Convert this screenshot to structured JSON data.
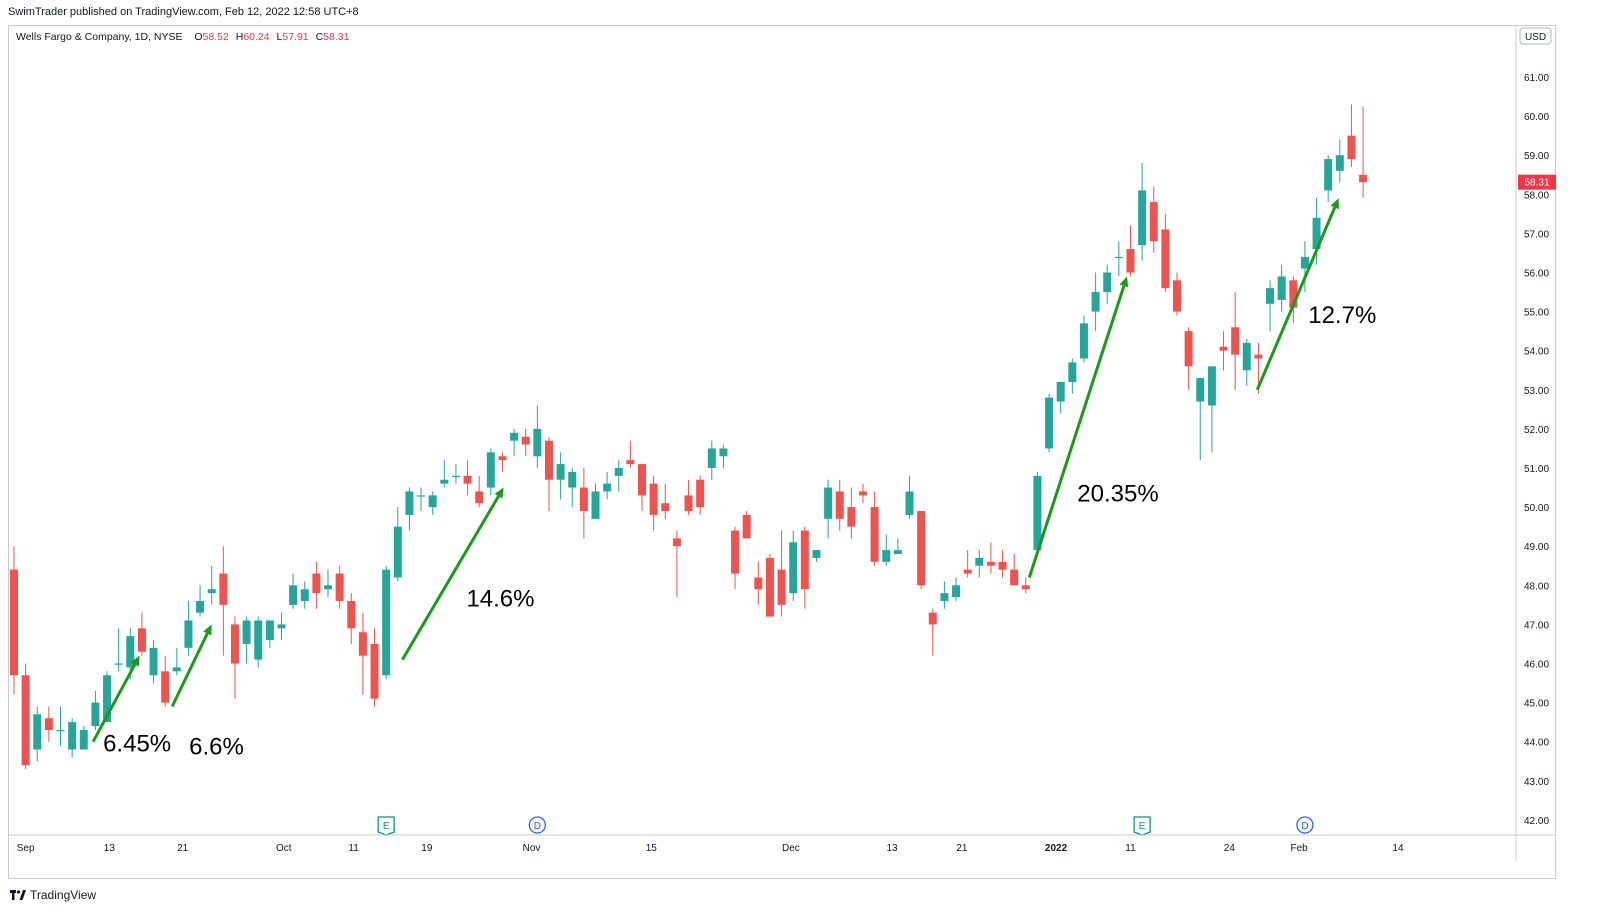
{
  "header": {
    "published_text": "SwimTrader published on TradingView.com, Feb 12, 2022 12:58 UTC+8"
  },
  "legend": {
    "symbol_text": "Wells Fargo & Company, 1D, NYSE",
    "open_label": "O",
    "open_value": "58.52",
    "high_label": "H",
    "high_value": "60.24",
    "low_label": "L",
    "low_value": "57.91",
    "close_label": "C",
    "close_value": "58.31"
  },
  "currency_badge": "USD",
  "last_price_badge": "58.31",
  "brand_label": "TradingView",
  "colors": {
    "up": "#26a69a",
    "down": "#ef5350",
    "arrow": "#1a9a1a",
    "last_price": "#f23645",
    "earnings_marker": "#089981",
    "dividend_marker": "#2962ff"
  },
  "chart_data": {
    "type": "candlestick",
    "title": "",
    "y_axis_ticks": [
      "42.00",
      "43.00",
      "44.00",
      "45.00",
      "46.00",
      "47.00",
      "48.00",
      "49.00",
      "50.00",
      "51.00",
      "52.00",
      "53.00",
      "54.00",
      "55.00",
      "56.00",
      "57.00",
      "58.00",
      "59.00",
      "60.00",
      "61.00"
    ],
    "x_axis_ticks": [
      "Sep",
      "13",
      "21",
      "Oct",
      "11",
      "19",
      "Nov",
      "15",
      "Dec",
      "13",
      "21",
      "2022",
      "11",
      "24",
      "Feb",
      "14"
    ],
    "ylim": [
      41.6,
      61.6
    ],
    "grid": false,
    "candles": [
      {
        "o": 48.4,
        "h": 49.0,
        "l": 45.2,
        "c": 45.7
      },
      {
        "o": 45.7,
        "h": 46.0,
        "l": 43.3,
        "c": 43.4
      },
      {
        "o": 43.8,
        "h": 44.9,
        "l": 43.5,
        "c": 44.7
      },
      {
        "o": 44.6,
        "h": 44.9,
        "l": 44.0,
        "c": 44.3
      },
      {
        "o": 44.3,
        "h": 44.9,
        "l": 43.9,
        "c": 44.3
      },
      {
        "o": 43.8,
        "h": 44.6,
        "l": 43.6,
        "c": 44.5
      },
      {
        "o": 43.8,
        "h": 44.4,
        "l": 43.8,
        "c": 44.3
      },
      {
        "o": 44.4,
        "h": 45.3,
        "l": 44.3,
        "c": 45.0
      },
      {
        "o": 44.5,
        "h": 45.8,
        "l": 44.5,
        "c": 45.7
      },
      {
        "o": 46.0,
        "h": 46.9,
        "l": 45.8,
        "c": 46.0
      },
      {
        "o": 45.9,
        "h": 46.9,
        "l": 45.6,
        "c": 46.7
      },
      {
        "o": 46.9,
        "h": 47.3,
        "l": 46.2,
        "c": 46.3
      },
      {
        "o": 45.7,
        "h": 46.6,
        "l": 45.5,
        "c": 46.4
      },
      {
        "o": 45.8,
        "h": 46.2,
        "l": 44.9,
        "c": 45.0
      },
      {
        "o": 45.8,
        "h": 46.4,
        "l": 45.7,
        "c": 45.9
      },
      {
        "o": 46.4,
        "h": 47.6,
        "l": 46.2,
        "c": 47.1
      },
      {
        "o": 47.3,
        "h": 48.0,
        "l": 47.2,
        "c": 47.6
      },
      {
        "o": 47.8,
        "h": 48.5,
        "l": 47.5,
        "c": 47.9
      },
      {
        "o": 48.3,
        "h": 49.0,
        "l": 46.2,
        "c": 47.5
      },
      {
        "o": 47.0,
        "h": 47.2,
        "l": 45.1,
        "c": 46.0
      },
      {
        "o": 46.5,
        "h": 47.2,
        "l": 46.0,
        "c": 47.1
      },
      {
        "o": 46.1,
        "h": 47.2,
        "l": 45.9,
        "c": 47.1
      },
      {
        "o": 46.6,
        "h": 47.1,
        "l": 46.4,
        "c": 47.1
      },
      {
        "o": 46.9,
        "h": 47.3,
        "l": 46.6,
        "c": 47.0
      },
      {
        "o": 47.5,
        "h": 48.3,
        "l": 47.4,
        "c": 48.0
      },
      {
        "o": 47.6,
        "h": 48.1,
        "l": 47.4,
        "c": 47.9
      },
      {
        "o": 48.3,
        "h": 48.6,
        "l": 47.4,
        "c": 47.8
      },
      {
        "o": 47.9,
        "h": 48.4,
        "l": 47.7,
        "c": 48.0
      },
      {
        "o": 48.3,
        "h": 48.5,
        "l": 47.4,
        "c": 47.6
      },
      {
        "o": 47.6,
        "h": 47.8,
        "l": 46.5,
        "c": 46.9
      },
      {
        "o": 46.8,
        "h": 47.3,
        "l": 45.2,
        "c": 46.2
      },
      {
        "o": 46.5,
        "h": 46.9,
        "l": 44.9,
        "c": 45.1
      },
      {
        "o": 45.7,
        "h": 48.5,
        "l": 45.6,
        "c": 48.4
      },
      {
        "o": 48.2,
        "h": 50.0,
        "l": 48.1,
        "c": 49.5
      },
      {
        "o": 49.8,
        "h": 50.5,
        "l": 49.4,
        "c": 50.4
      },
      {
        "o": 50.3,
        "h": 50.5,
        "l": 49.9,
        "c": 50.3
      },
      {
        "o": 50.0,
        "h": 50.4,
        "l": 49.8,
        "c": 50.3
      },
      {
        "o": 50.6,
        "h": 51.2,
        "l": 50.5,
        "c": 50.7
      },
      {
        "o": 50.8,
        "h": 51.1,
        "l": 50.6,
        "c": 50.8
      },
      {
        "o": 50.8,
        "h": 51.2,
        "l": 50.3,
        "c": 50.6
      },
      {
        "o": 50.4,
        "h": 50.8,
        "l": 50.0,
        "c": 50.1
      },
      {
        "o": 50.5,
        "h": 51.5,
        "l": 50.3,
        "c": 51.4
      },
      {
        "o": 51.3,
        "h": 51.4,
        "l": 50.9,
        "c": 51.2
      },
      {
        "o": 51.7,
        "h": 52.0,
        "l": 51.3,
        "c": 51.9
      },
      {
        "o": 51.8,
        "h": 52.0,
        "l": 51.3,
        "c": 51.6
      },
      {
        "o": 51.3,
        "h": 52.6,
        "l": 51.0,
        "c": 52.0
      },
      {
        "o": 51.7,
        "h": 51.8,
        "l": 49.9,
        "c": 50.7
      },
      {
        "o": 50.7,
        "h": 51.4,
        "l": 50.2,
        "c": 51.1
      },
      {
        "o": 50.5,
        "h": 51.0,
        "l": 50.0,
        "c": 50.9
      },
      {
        "o": 50.5,
        "h": 51.0,
        "l": 49.2,
        "c": 49.9
      },
      {
        "o": 49.7,
        "h": 50.6,
        "l": 49.7,
        "c": 50.4
      },
      {
        "o": 50.4,
        "h": 50.9,
        "l": 50.2,
        "c": 50.6
      },
      {
        "o": 50.8,
        "h": 51.2,
        "l": 50.4,
        "c": 51.0
      },
      {
        "o": 51.2,
        "h": 51.7,
        "l": 51.0,
        "c": 51.1
      },
      {
        "o": 51.1,
        "h": 51.1,
        "l": 49.9,
        "c": 50.3
      },
      {
        "o": 50.6,
        "h": 50.8,
        "l": 49.4,
        "c": 49.8
      },
      {
        "o": 50.1,
        "h": 50.6,
        "l": 49.7,
        "c": 49.9
      },
      {
        "o": 49.2,
        "h": 49.4,
        "l": 47.7,
        "c": 49.0
      },
      {
        "o": 50.3,
        "h": 50.7,
        "l": 49.8,
        "c": 49.9
      },
      {
        "o": 50.7,
        "h": 50.8,
        "l": 49.8,
        "c": 50.0
      },
      {
        "o": 51.0,
        "h": 51.7,
        "l": 50.7,
        "c": 51.5
      },
      {
        "o": 51.3,
        "h": 51.6,
        "l": 51.0,
        "c": 51.5
      },
      {
        "o": 49.4,
        "h": 49.5,
        "l": 47.9,
        "c": 48.3
      },
      {
        "o": 49.8,
        "h": 49.9,
        "l": 49.2,
        "c": 49.2
      },
      {
        "o": 48.2,
        "h": 48.6,
        "l": 47.5,
        "c": 47.9
      },
      {
        "o": 48.7,
        "h": 48.8,
        "l": 47.2,
        "c": 47.2
      },
      {
        "o": 48.4,
        "h": 49.4,
        "l": 47.2,
        "c": 47.5
      },
      {
        "o": 47.8,
        "h": 49.4,
        "l": 47.6,
        "c": 49.1
      },
      {
        "o": 49.4,
        "h": 49.5,
        "l": 47.4,
        "c": 47.9
      },
      {
        "o": 48.7,
        "h": 48.9,
        "l": 48.6,
        "c": 48.9
      },
      {
        "o": 49.7,
        "h": 50.7,
        "l": 49.2,
        "c": 50.5
      },
      {
        "o": 50.4,
        "h": 50.7,
        "l": 49.4,
        "c": 49.7
      },
      {
        "o": 50.0,
        "h": 50.5,
        "l": 49.2,
        "c": 49.5
      },
      {
        "o": 50.4,
        "h": 50.6,
        "l": 50.1,
        "c": 50.3
      },
      {
        "o": 50.0,
        "h": 50.4,
        "l": 48.5,
        "c": 48.6
      },
      {
        "o": 48.6,
        "h": 49.3,
        "l": 48.5,
        "c": 48.9
      },
      {
        "o": 48.8,
        "h": 49.2,
        "l": 48.8,
        "c": 48.9
      },
      {
        "o": 49.8,
        "h": 50.8,
        "l": 49.7,
        "c": 50.4
      },
      {
        "o": 49.9,
        "h": 49.9,
        "l": 47.9,
        "c": 48.0
      },
      {
        "o": 47.3,
        "h": 47.4,
        "l": 46.2,
        "c": 47.0
      },
      {
        "o": 47.6,
        "h": 48.1,
        "l": 47.4,
        "c": 47.8
      },
      {
        "o": 47.7,
        "h": 48.2,
        "l": 47.6,
        "c": 48.0
      },
      {
        "o": 48.4,
        "h": 48.9,
        "l": 48.2,
        "c": 48.3
      },
      {
        "o": 48.5,
        "h": 48.9,
        "l": 48.2,
        "c": 48.7
      },
      {
        "o": 48.6,
        "h": 49.1,
        "l": 48.3,
        "c": 48.5
      },
      {
        "o": 48.6,
        "h": 48.9,
        "l": 48.2,
        "c": 48.4
      },
      {
        "o": 48.4,
        "h": 48.8,
        "l": 48.0,
        "c": 48.0
      },
      {
        "o": 48.0,
        "h": 48.2,
        "l": 47.8,
        "c": 47.9
      },
      {
        "o": 48.9,
        "h": 50.9,
        "l": 48.8,
        "c": 50.8
      },
      {
        "o": 51.5,
        "h": 52.9,
        "l": 51.4,
        "c": 52.8
      },
      {
        "o": 52.7,
        "h": 53.1,
        "l": 52.4,
        "c": 53.2
      },
      {
        "o": 53.2,
        "h": 53.8,
        "l": 52.9,
        "c": 53.7
      },
      {
        "o": 53.8,
        "h": 54.9,
        "l": 53.7,
        "c": 54.7
      },
      {
        "o": 55.0,
        "h": 56.0,
        "l": 54.5,
        "c": 55.5
      },
      {
        "o": 55.5,
        "h": 56.2,
        "l": 55.2,
        "c": 56.0
      },
      {
        "o": 56.4,
        "h": 56.8,
        "l": 55.9,
        "c": 56.4
      },
      {
        "o": 56.6,
        "h": 57.2,
        "l": 55.9,
        "c": 56.0
      },
      {
        "o": 56.7,
        "h": 58.8,
        "l": 56.3,
        "c": 58.1
      },
      {
        "o": 57.8,
        "h": 58.2,
        "l": 56.5,
        "c": 56.8
      },
      {
        "o": 57.1,
        "h": 57.5,
        "l": 55.5,
        "c": 55.6
      },
      {
        "o": 55.8,
        "h": 56.0,
        "l": 54.9,
        "c": 55.0
      },
      {
        "o": 54.5,
        "h": 54.6,
        "l": 53.0,
        "c": 53.6
      },
      {
        "o": 52.7,
        "h": 53.3,
        "l": 51.2,
        "c": 53.3
      },
      {
        "o": 52.6,
        "h": 53.6,
        "l": 51.4,
        "c": 53.6
      },
      {
        "o": 54.1,
        "h": 54.5,
        "l": 53.5,
        "c": 54.0
      },
      {
        "o": 54.6,
        "h": 55.5,
        "l": 53.0,
        "c": 53.9
      },
      {
        "o": 53.5,
        "h": 54.3,
        "l": 53.1,
        "c": 54.2
      },
      {
        "o": 53.9,
        "h": 54.2,
        "l": 52.9,
        "c": 53.8
      },
      {
        "o": 55.2,
        "h": 55.8,
        "l": 54.5,
        "c": 55.6
      },
      {
        "o": 55.3,
        "h": 56.2,
        "l": 55.0,
        "c": 55.9
      },
      {
        "o": 55.8,
        "h": 55.9,
        "l": 54.7,
        "c": 55.1
      },
      {
        "o": 56.1,
        "h": 56.8,
        "l": 55.5,
        "c": 56.4
      },
      {
        "o": 56.6,
        "h": 57.9,
        "l": 56.2,
        "c": 57.4
      },
      {
        "o": 58.1,
        "h": 59.0,
        "l": 57.8,
        "c": 58.9
      },
      {
        "o": 58.6,
        "h": 59.4,
        "l": 58.3,
        "c": 59.0
      },
      {
        "o": 59.5,
        "h": 60.3,
        "l": 58.7,
        "c": 58.9
      },
      {
        "o": 58.5,
        "h": 60.24,
        "l": 57.91,
        "c": 58.31
      }
    ],
    "event_markers": [
      {
        "label": "E",
        "type": "earnings",
        "index": 32
      },
      {
        "label": "D",
        "type": "dividend",
        "index": 45
      },
      {
        "label": "E",
        "type": "earnings",
        "index": 97
      },
      {
        "label": "D",
        "type": "dividend",
        "index": 111
      }
    ],
    "annotations": [
      {
        "text": "6.45%",
        "from": {
          "i": 6.8,
          "y": 44.0
        },
        "to": {
          "i": 10.8,
          "y": 46.2
        }
      },
      {
        "text": "6.6%",
        "from": {
          "i": 13.6,
          "y": 44.9
        },
        "to": {
          "i": 17.0,
          "y": 47.0
        }
      },
      {
        "text": "14.6%",
        "from": {
          "i": 33.4,
          "y": 46.1
        },
        "to": {
          "i": 42.1,
          "y": 50.5
        }
      },
      {
        "text": "20.35%",
        "from": {
          "i": 87.3,
          "y": 48.2
        },
        "to": {
          "i": 95.7,
          "y": 55.9
        }
      },
      {
        "text": "12.7%",
        "from": {
          "i": 106.9,
          "y": 53.0
        },
        "to": {
          "i": 113.9,
          "y": 57.9
        }
      }
    ]
  }
}
